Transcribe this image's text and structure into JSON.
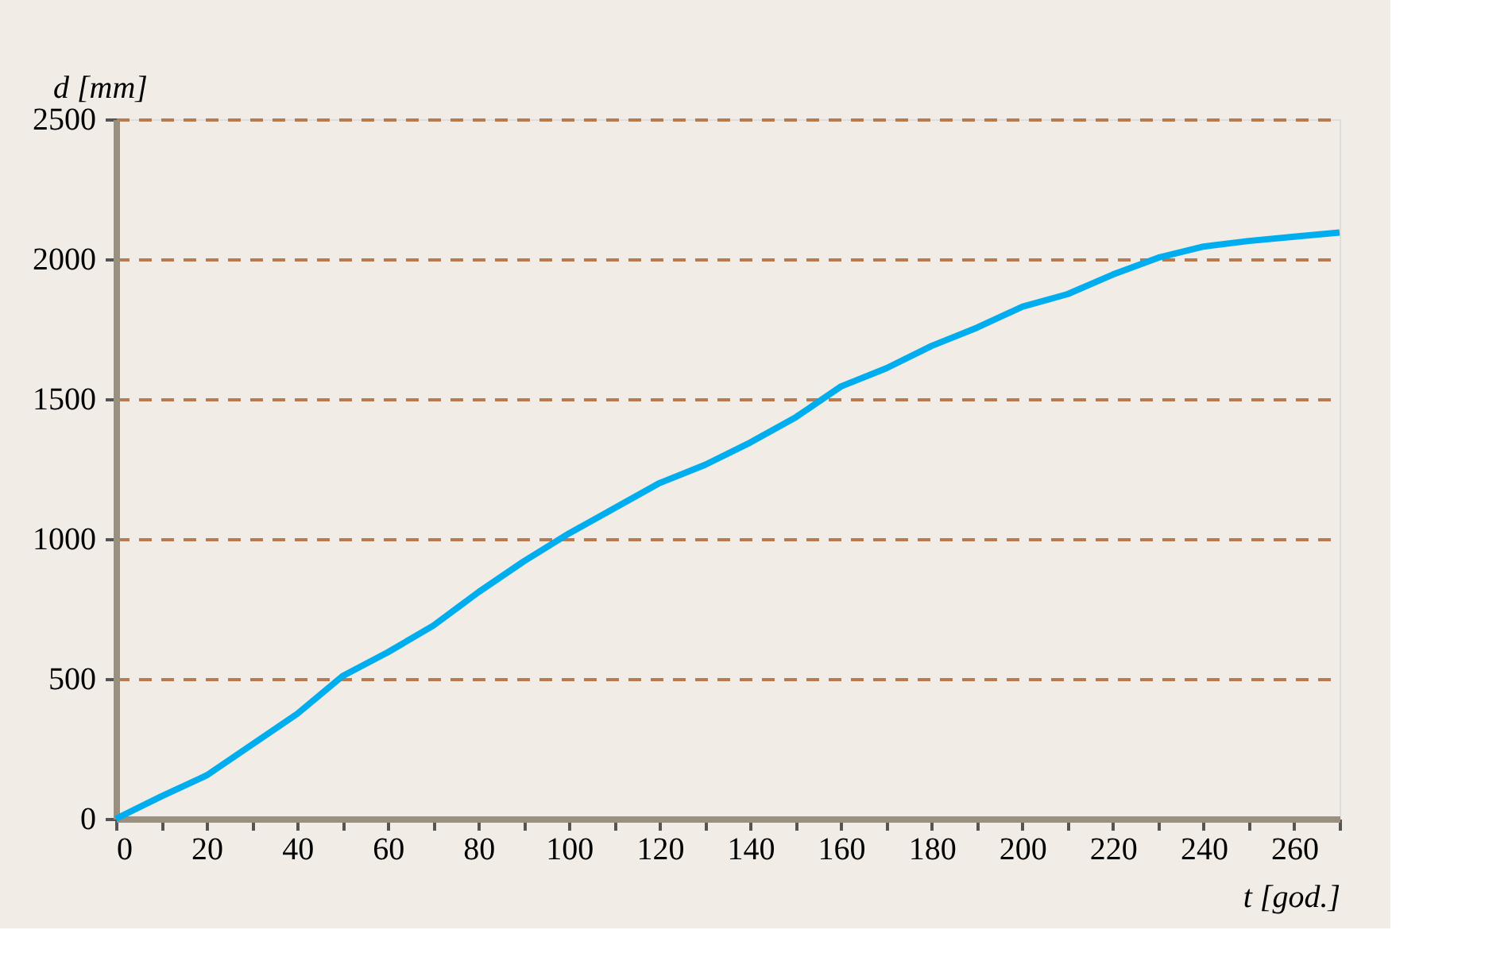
{
  "chart_data": {
    "type": "line",
    "xlabel": "t  [god.]",
    "ylabel": "d  [mm]",
    "x": [
      0,
      10,
      20,
      30,
      40,
      50,
      60,
      70,
      80,
      90,
      100,
      110,
      120,
      130,
      140,
      150,
      160,
      170,
      180,
      190,
      200,
      210,
      220,
      230,
      240,
      250,
      260,
      270
    ],
    "series": [
      {
        "color": "#00aeef",
        "values": [
          0,
          80,
          155,
          265,
          375,
          510,
          595,
          690,
          810,
          920,
          1020,
          1110,
          1200,
          1265,
          1345,
          1435,
          1545,
          1610,
          1690,
          1755,
          1830,
          1875,
          1945,
          2005,
          2045,
          2065,
          2080,
          2095
        ]
      }
    ],
    "xlim": [
      0,
      270
    ],
    "ylim": [
      0,
      2500
    ],
    "xticks": [
      0,
      {
        "value": 10,
        "label": null
      },
      20,
      {
        "value": 30,
        "label": null
      },
      40,
      {
        "value": 50,
        "label": null
      },
      60,
      {
        "value": 70,
        "label": null
      },
      80,
      {
        "value": 90,
        "label": null
      },
      100,
      {
        "value": 110,
        "label": null
      },
      120,
      {
        "value": 130,
        "label": null
      },
      140,
      {
        "value": 150,
        "label": null
      },
      160,
      {
        "value": 170,
        "label": null
      },
      180,
      {
        "value": 190,
        "label": null
      },
      200,
      {
        "value": 210,
        "label": null
      },
      220,
      {
        "value": 230,
        "label": null
      },
      240,
      {
        "value": 250,
        "label": null
      },
      260,
      {
        "value": 270,
        "label": null
      }
    ],
    "yticks": [
      0,
      500,
      1000,
      1500,
      2000,
      2500
    ],
    "grid": "y",
    "marker": "none",
    "line_style": "solid",
    "legend": false
  }
}
